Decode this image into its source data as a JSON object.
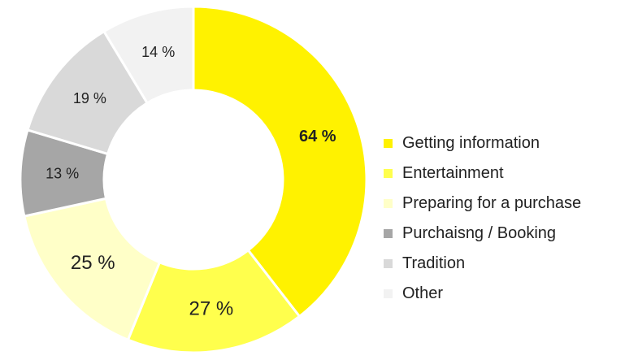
{
  "chart_data": {
    "type": "donut",
    "title": "",
    "categories": [
      "Getting information",
      "Entertainment",
      "Preparing for a purchase",
      "Purchaisng / Booking",
      "Tradition",
      "Other"
    ],
    "values": [
      64,
      27,
      25,
      13,
      19,
      14
    ],
    "labels": [
      "64 %",
      "27 %",
      "25 %",
      "13 %",
      "19 %",
      "14 %"
    ],
    "colors": [
      "#FFF200",
      "#FFFF4D",
      "#FFFFC8",
      "#A6A6A6",
      "#D9D9D9",
      "#F2F2F2"
    ],
    "legend_position": "right"
  }
}
